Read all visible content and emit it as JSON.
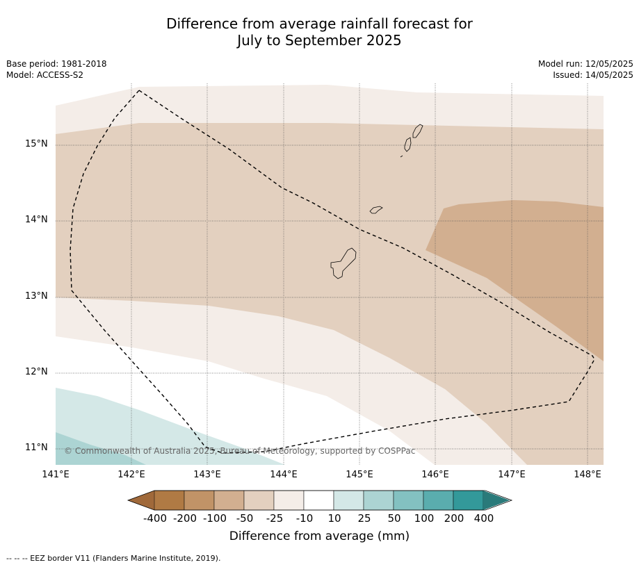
{
  "title": {
    "line1": "Difference from average rainfall forecast for",
    "line2": "July to September 2025"
  },
  "meta_left": {
    "base_period": "Base period: 1981-2018",
    "model": "Model: ACCESS-S2"
  },
  "meta_right": {
    "model_run": "Model run: 12/05/2025",
    "issued": "Issued: 14/05/2025"
  },
  "map": {
    "lat_ticks": [
      "15°N",
      "14°N",
      "13°N",
      "12°N",
      "11°N"
    ],
    "lon_ticks": [
      "141°E",
      "142°E",
      "143°E",
      "144°E",
      "145°E",
      "146°E",
      "147°E",
      "148°E"
    ],
    "copyright": "© Commonwealth of Australia 2025, Bureau of Meteorology, supported by COSPPac",
    "gridlines": true,
    "border_style": "dashed"
  },
  "colorbar": {
    "title": "Difference from average (mm)",
    "labels": [
      "-400",
      "-200",
      "-100",
      "-50",
      "-25",
      "-10",
      "10",
      "25",
      "50",
      "100",
      "200",
      "400"
    ],
    "colors": [
      "#a0693a",
      "#b07a44",
      "#c19367",
      "#d2af90",
      "#e3d0bf",
      "#f4ede8",
      "#ffffff",
      "#d4e8e7",
      "#acd4d3",
      "#83c1c1",
      "#5aadae",
      "#33999a",
      "#2a7a7a"
    ]
  },
  "footnote": "--  --  -- EEZ border V11 (Flanders Marine Institute, 2019)."
}
